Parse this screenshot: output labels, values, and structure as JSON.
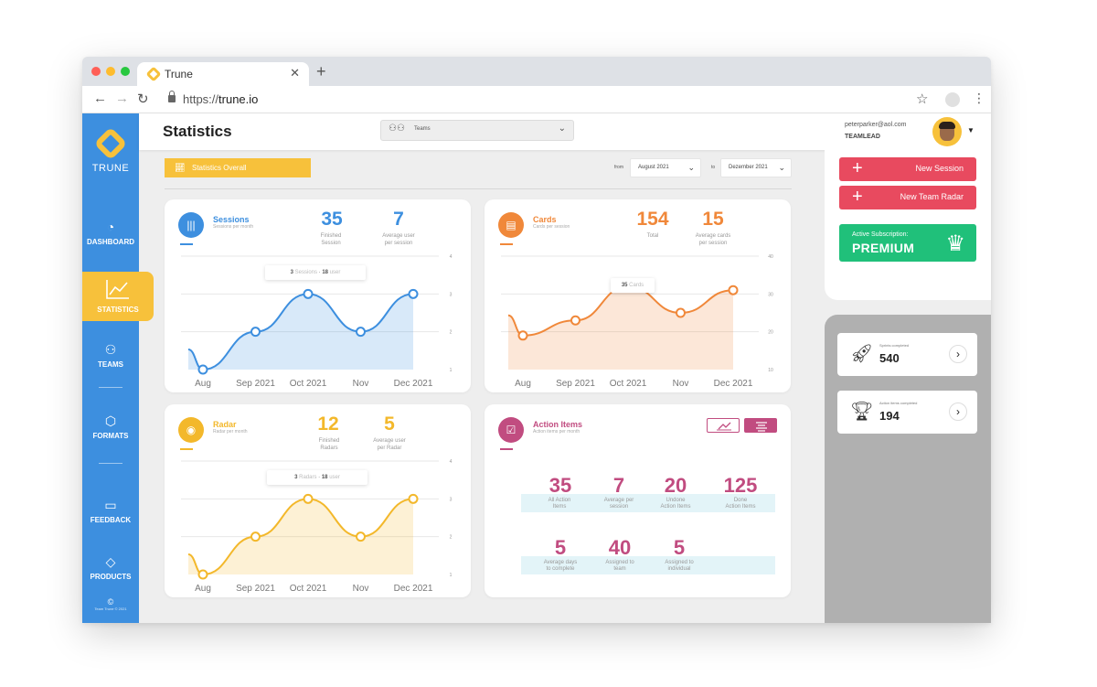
{
  "browser": {
    "tab_title": "Trune",
    "url_scheme": "https://",
    "url_host": "trune.io"
  },
  "sidebar": {
    "logo_text": "TRUNE",
    "items": [
      {
        "label": "DASHBOARD",
        "icon": "dashboard-icon"
      },
      {
        "label": "STATISTICS",
        "icon": "chart-line-icon",
        "active": true
      },
      {
        "label": "TEAMS",
        "icon": "team-icon"
      },
      {
        "label": "FORMATS",
        "icon": "cube-icon"
      },
      {
        "label": "FEEDBACK",
        "icon": "chat-bubble-icon"
      },
      {
        "label": "PRODUCTS",
        "icon": "diamond-icon"
      }
    ],
    "copyright_symbol": "©",
    "copyright_text": "Team Trune © 2021"
  },
  "header": {
    "title": "Statistics",
    "team_select": "Teams",
    "user_email": "peterparker@aol.com",
    "user_role": "TEAMLEAD"
  },
  "toolbar": {
    "stats_button": "Statistics Overall",
    "from_label": "from",
    "from_value": "August 2021",
    "to_label": "to",
    "to_value": "Dezember 2021"
  },
  "cards": {
    "sessions": {
      "title": "Sessions",
      "subtitle": "Sessions per month",
      "stat1_value": "35",
      "stat1_label_1": "Finished",
      "stat1_label_2": "Session",
      "stat2_value": "7",
      "stat2_label_1": "Average user",
      "stat2_label_2": "per session",
      "tooltip_a": "3",
      "tooltip_a_label": "Sessions",
      "tooltip_b": "18",
      "tooltip_b_label": "user",
      "x_labels": [
        "Aug",
        "Sep 2021",
        "Oct 2021",
        "Nov",
        "Dec 2021"
      ],
      "y_ticks": [
        "4",
        "3",
        "2",
        "1"
      ],
      "color": "#3d8fdf"
    },
    "cards": {
      "title": "Cards",
      "subtitle": "Cards per session",
      "stat1_value": "154",
      "stat1_label_1": "Total",
      "stat2_value": "15",
      "stat2_label_1": "Average cards",
      "stat2_label_2": "per session",
      "tooltip": "35",
      "tooltip_label": "Cards",
      "x_labels": [
        "Aug",
        "Sep 2021",
        "Oct 2021",
        "Nov",
        "Dec 2021"
      ],
      "y_ticks": [
        "40",
        "30",
        "20",
        "10"
      ],
      "color": "#f0883a"
    },
    "radar": {
      "title": "Radar",
      "subtitle": "Radar per month",
      "stat1_value": "12",
      "stat1_label_1": "Finished",
      "stat1_label_2": "Radars",
      "stat2_value": "5",
      "stat2_label_1": "Average user",
      "stat2_label_2": "per Radar",
      "tooltip_a": "3",
      "tooltip_a_label": "Radars",
      "tooltip_b": "18",
      "tooltip_b_label": "user",
      "x_labels": [
        "Aug",
        "Sep 2021",
        "Oct 2021",
        "Nov",
        "Dec 2021"
      ],
      "y_ticks": [
        "4",
        "3",
        "2",
        "1"
      ],
      "color": "#f3b82b"
    },
    "action_items": {
      "title": "Action Items",
      "subtitle": "Action items per month",
      "stats_row1": [
        {
          "value": "35",
          "label_1": "All Action",
          "label_2": "Items"
        },
        {
          "value": "7",
          "label_1": "Average per",
          "label_2": "session"
        },
        {
          "value": "20",
          "label_1": "Undone",
          "label_2": "Action Items"
        },
        {
          "value": "125",
          "label_1": "Done",
          "label_2": "Action Items"
        }
      ],
      "stats_row2": [
        {
          "value": "5",
          "label_1": "Average days",
          "label_2": "to complete"
        },
        {
          "value": "40",
          "label_1": "Assigned to",
          "label_2": "team"
        },
        {
          "value": "5",
          "label_1": "Assigned to",
          "label_2": "individual"
        }
      ],
      "color": "#c14c80"
    }
  },
  "right_panel": {
    "new_session": "New Session",
    "new_team_radar": "New Team Radar",
    "subscription_label": "Active Subscription:",
    "subscription_plan": "PREMIUM",
    "tiles": [
      {
        "label": "Sprints completed",
        "value": "540",
        "icon": "rocket-icon"
      },
      {
        "label": "Action items completed",
        "value": "194",
        "icon": "trophy-icon"
      }
    ]
  },
  "chart_data": [
    {
      "type": "area",
      "title": "Sessions",
      "categories": [
        "Aug",
        "Sep 2021",
        "Oct 2021",
        "Nov",
        "Dec 2021"
      ],
      "series": [
        {
          "values": [
            1.0,
            2.0,
            3.0,
            2.0,
            3.0
          ]
        }
      ],
      "ylim": [
        1,
        4
      ]
    },
    {
      "type": "area",
      "title": "Cards",
      "categories": [
        "Aug",
        "Sep 2021",
        "Oct 2021",
        "Nov",
        "Dec 2021"
      ],
      "series": [
        {
          "values": [
            19,
            23,
            32,
            25,
            31
          ]
        }
      ],
      "ylim": [
        10,
        40
      ]
    },
    {
      "type": "area",
      "title": "Radar",
      "categories": [
        "Aug",
        "Sep 2021",
        "Oct 2021",
        "Nov",
        "Dec 2021"
      ],
      "series": [
        {
          "values": [
            1.0,
            2.0,
            3.0,
            2.0,
            3.0
          ]
        }
      ],
      "ylim": [
        1,
        4
      ]
    }
  ]
}
